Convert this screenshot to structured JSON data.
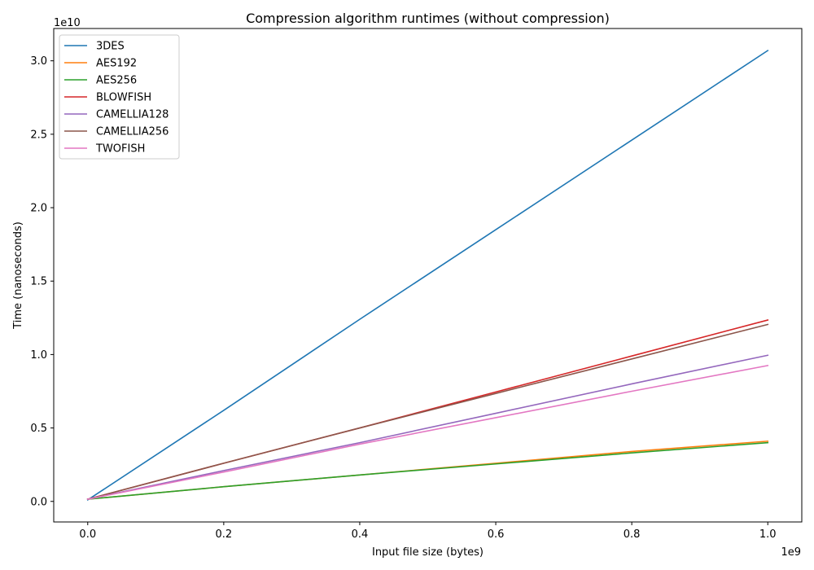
{
  "chart_data": {
    "type": "line",
    "title": "Compression algorithm runtimes (without compression)",
    "xlabel": "Input file size (bytes)",
    "ylabel": "Time (nanoseconds)",
    "x_offset_text": "1e9",
    "y_offset_text": "1e10",
    "xlim": [
      -0.05,
      1.05
    ],
    "ylim": [
      -0.14,
      3.22
    ],
    "xticks": [
      0.0,
      0.2,
      0.4,
      0.6,
      0.8,
      1.0
    ],
    "xtick_labels": [
      "0.0",
      "0.2",
      "0.4",
      "0.6",
      "0.8",
      "1.0"
    ],
    "yticks": [
      0.0,
      0.5,
      1.0,
      1.5,
      2.0,
      2.5,
      3.0
    ],
    "ytick_labels": [
      "0.0",
      "0.5",
      "1.0",
      "1.5",
      "2.0",
      "2.5",
      "3.0"
    ],
    "grid": false,
    "legend_position": "top-left",
    "x": [
      0.0,
      0.2,
      0.4,
      0.6,
      0.8,
      1.0
    ],
    "series": [
      {
        "name": "3DES",
        "color": "#1f77b4",
        "values": [
          0.01,
          0.62,
          1.24,
          1.85,
          2.46,
          3.07
        ]
      },
      {
        "name": "AES192",
        "color": "#ff7f0e",
        "values": [
          0.015,
          0.1,
          0.18,
          0.26,
          0.34,
          0.41
        ]
      },
      {
        "name": "AES256",
        "color": "#2ca02c",
        "values": [
          0.015,
          0.1,
          0.18,
          0.255,
          0.33,
          0.4
        ]
      },
      {
        "name": "BLOWFISH",
        "color": "#d62728",
        "values": [
          0.015,
          0.26,
          0.5,
          0.745,
          0.99,
          1.235
        ]
      },
      {
        "name": "CAMELLIA128",
        "color": "#9467bd",
        "values": [
          0.015,
          0.21,
          0.4,
          0.6,
          0.8,
          0.995
        ]
      },
      {
        "name": "CAMELLIA256",
        "color": "#8c564b",
        "values": [
          0.015,
          0.26,
          0.5,
          0.735,
          0.97,
          1.205
        ]
      },
      {
        "name": "TWOFISH",
        "color": "#e377c2",
        "values": [
          0.015,
          0.2,
          0.39,
          0.57,
          0.75,
          0.925
        ]
      }
    ]
  }
}
